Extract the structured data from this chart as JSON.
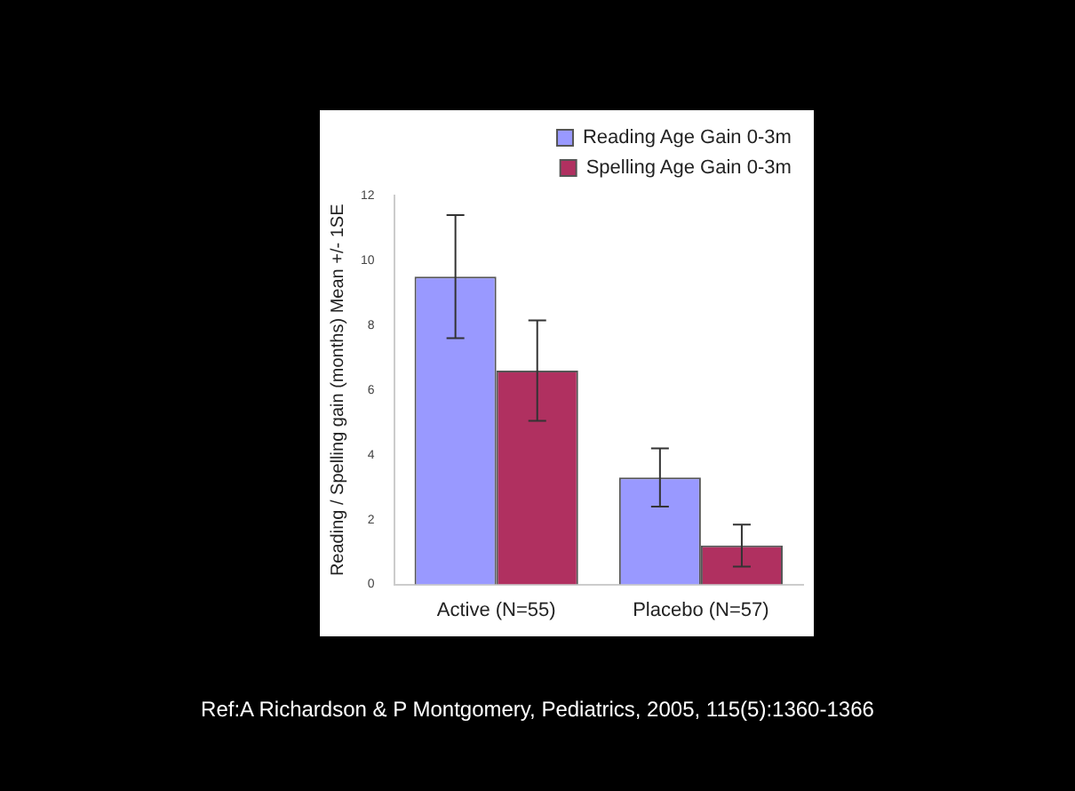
{
  "chart_data": {
    "type": "bar",
    "ylabel": "Reading / Spelling gain (months) Mean +/- 1SE",
    "categories": [
      "Active (N=55)",
      "Placebo (N=57)"
    ],
    "series": [
      {
        "name": "Reading Age Gain 0-3m",
        "color": "#9999ff",
        "values": [
          9.5,
          3.3
        ],
        "errors": [
          1.9,
          0.9
        ]
      },
      {
        "name": "Spelling Age Gain 0-3m",
        "color": "#b03060",
        "values": [
          6.6,
          1.2
        ],
        "errors": [
          1.55,
          0.65
        ]
      }
    ],
    "ylim": [
      0,
      12
    ],
    "yticks": [
      0,
      2,
      4,
      6,
      8,
      10,
      12
    ],
    "grid": false,
    "legend": "top right",
    "annotations": [
      "Ref:A Richardson & P Montgomery, Pediatrics, 2005, 115(5):1360-1366"
    ]
  }
}
